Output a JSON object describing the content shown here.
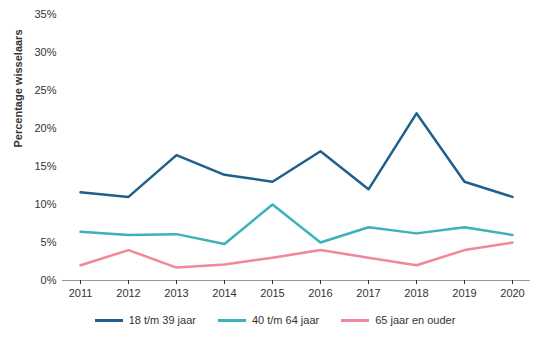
{
  "chart_data": {
    "type": "line",
    "y_label": "Percentage wisselaars",
    "categories": [
      "2011",
      "2012",
      "2013",
      "2014",
      "2015",
      "2016",
      "2017",
      "2018",
      "2019",
      "2020"
    ],
    "series": [
      {
        "name": "18 t/m 39 jaar",
        "color": "#1f5f8b",
        "values": [
          11.6,
          11,
          16.5,
          13.9,
          13,
          17,
          12,
          22,
          13,
          11
        ]
      },
      {
        "name": "40 t/m 64 jaar",
        "color": "#3bb3b8",
        "values": [
          6.4,
          6,
          6.1,
          4.8,
          10,
          5,
          7,
          6.2,
          7,
          6
        ]
      },
      {
        "name": "65 jaar en ouder",
        "color": "#f0879b",
        "values": [
          2,
          4,
          1.7,
          2.1,
          3,
          4,
          3,
          2,
          4,
          5
        ]
      }
    ],
    "ylim": [
      0,
      35
    ],
    "yticks": [
      {
        "value": 0,
        "label": "0%"
      },
      {
        "value": 5,
        "label": "5%"
      },
      {
        "value": 10,
        "label": "10%"
      },
      {
        "value": 15,
        "label": "15%"
      },
      {
        "value": 20,
        "label": "20%"
      },
      {
        "value": 25,
        "label": "25%"
      },
      {
        "value": 30,
        "label": "30%"
      },
      {
        "value": 35,
        "label": "35%"
      }
    ],
    "grid": false,
    "legend": "bottom"
  }
}
